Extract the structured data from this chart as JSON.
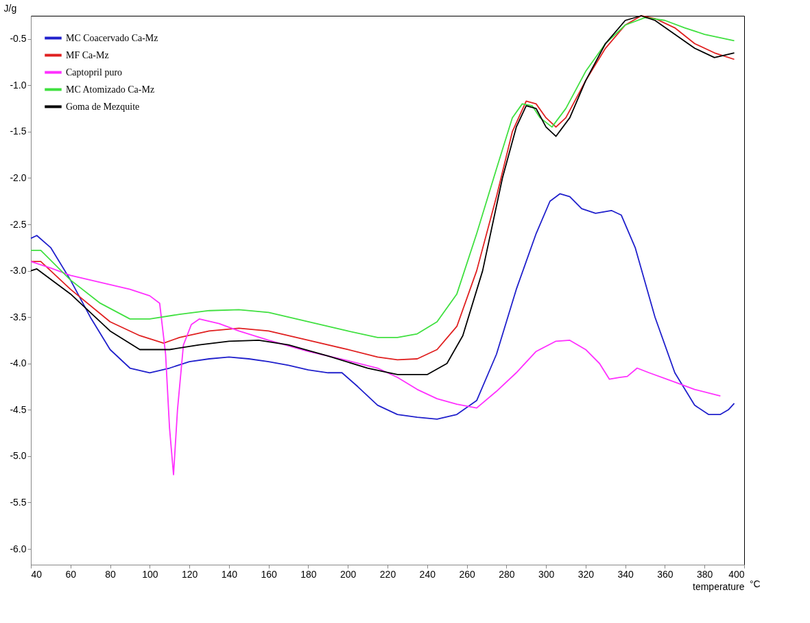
{
  "chart_data": {
    "type": "line",
    "xlabel": "temperature",
    "ylabel": "J/g",
    "annotations": [
      "°C"
    ],
    "xlim": [
      40,
      400
    ],
    "ylim": [
      -6.17,
      -0.25
    ],
    "xticks": [
      40,
      60,
      80,
      100,
      120,
      140,
      160,
      180,
      200,
      220,
      240,
      260,
      280,
      300,
      320,
      340,
      360,
      380,
      400
    ],
    "yticks": [
      {
        "value": -6.0,
        "label": "-6.0"
      },
      {
        "value": -5.5,
        "label": "-5.5"
      },
      {
        "value": -5.0,
        "label": "-5.0"
      },
      {
        "value": -4.5,
        "label": "-4.5"
      },
      {
        "value": -4.0,
        "label": "-4.0"
      },
      {
        "value": -3.5,
        "label": "-3.5"
      },
      {
        "value": -3.0,
        "label": "-3.0"
      },
      {
        "value": -2.5,
        "label": "-2.5"
      },
      {
        "value": -2.0,
        "label": "-2.0"
      },
      {
        "value": -1.5,
        "label": "-1.5"
      },
      {
        "value": -1.0,
        "label": "-1.0"
      },
      {
        "value": -0.5,
        "label": "-0.5"
      }
    ],
    "grid": false,
    "legend": "top left",
    "marker": "none",
    "line_style": "solid",
    "series": [
      {
        "name": "MC Coacervado Ca-Mz",
        "color": "#2020cc",
        "x": [
          40,
          43,
          50,
          60,
          70,
          80,
          90,
          100,
          110,
          120,
          130,
          140,
          150,
          160,
          170,
          180,
          190,
          197,
          205,
          215,
          225,
          235,
          245,
          255,
          265,
          275,
          285,
          295,
          302,
          307,
          312,
          318,
          325,
          333,
          338,
          345,
          355,
          365,
          375,
          382,
          388,
          392,
          395
        ],
        "values": [
          -2.65,
          -2.62,
          -2.75,
          -3.1,
          -3.5,
          -3.85,
          -4.05,
          -4.1,
          -4.05,
          -3.98,
          -3.95,
          -3.93,
          -3.95,
          -3.98,
          -4.02,
          -4.07,
          -4.1,
          -4.1,
          -4.25,
          -4.45,
          -4.55,
          -4.58,
          -4.6,
          -4.55,
          -4.4,
          -3.9,
          -3.2,
          -2.6,
          -2.25,
          -2.17,
          -2.2,
          -2.33,
          -2.38,
          -2.35,
          -2.4,
          -2.75,
          -3.5,
          -4.1,
          -4.45,
          -4.55,
          -4.55,
          -4.5,
          -4.43
        ]
      },
      {
        "name": "MF Ca-Mz",
        "color": "#e02020",
        "x": [
          40,
          45,
          60,
          80,
          95,
          107,
          115,
          130,
          145,
          160,
          180,
          200,
          215,
          225,
          235,
          245,
          255,
          265,
          275,
          283,
          290,
          295,
          300,
          305,
          310,
          320,
          330,
          340,
          348,
          355,
          365,
          375,
          385,
          395
        ],
        "values": [
          -2.9,
          -2.9,
          -3.2,
          -3.55,
          -3.7,
          -3.78,
          -3.72,
          -3.65,
          -3.62,
          -3.65,
          -3.75,
          -3.85,
          -3.93,
          -3.96,
          -3.95,
          -3.85,
          -3.6,
          -3.0,
          -2.2,
          -1.5,
          -1.17,
          -1.2,
          -1.35,
          -1.45,
          -1.35,
          -0.95,
          -0.6,
          -0.35,
          -0.25,
          -0.28,
          -0.38,
          -0.55,
          -0.65,
          -0.72
        ]
      },
      {
        "name": "Captopril puro",
        "color": "#ff30ff",
        "x": [
          40,
          50,
          60,
          70,
          80,
          90,
          100,
          105,
          108,
          110,
          112,
          114,
          117,
          121,
          125,
          135,
          145,
          160,
          180,
          200,
          215,
          225,
          235,
          245,
          255,
          265,
          275,
          285,
          295,
          305,
          312,
          320,
          327,
          332,
          337,
          341,
          346,
          352,
          365,
          375,
          388
        ],
        "values": [
          -2.9,
          -2.97,
          -3.05,
          -3.1,
          -3.15,
          -3.2,
          -3.27,
          -3.35,
          -3.9,
          -4.7,
          -5.2,
          -4.5,
          -3.8,
          -3.58,
          -3.52,
          -3.57,
          -3.65,
          -3.75,
          -3.87,
          -3.97,
          -4.05,
          -4.15,
          -4.28,
          -4.38,
          -4.44,
          -4.48,
          -4.3,
          -4.1,
          -3.87,
          -3.76,
          -3.75,
          -3.85,
          -4.0,
          -4.17,
          -4.15,
          -4.14,
          -4.05,
          -4.1,
          -4.2,
          -4.28,
          -4.35
        ]
      },
      {
        "name": "MC Atomizado Ca-Mz",
        "color": "#40e040",
        "x": [
          40,
          45,
          60,
          75,
          90,
          100,
          115,
          130,
          145,
          160,
          180,
          200,
          215,
          225,
          235,
          245,
          255,
          265,
          275,
          283,
          288,
          293,
          297,
          303,
          310,
          320,
          330,
          340,
          350,
          360,
          370,
          380,
          395
        ],
        "values": [
          -2.78,
          -2.78,
          -3.1,
          -3.35,
          -3.52,
          -3.52,
          -3.47,
          -3.43,
          -3.42,
          -3.45,
          -3.55,
          -3.65,
          -3.72,
          -3.72,
          -3.68,
          -3.55,
          -3.25,
          -2.6,
          -1.9,
          -1.35,
          -1.2,
          -1.22,
          -1.35,
          -1.45,
          -1.25,
          -0.85,
          -0.55,
          -0.35,
          -0.27,
          -0.3,
          -0.38,
          -0.45,
          -0.52
        ]
      },
      {
        "name": "Goma de Mezquite",
        "color": "#000000",
        "x": [
          40,
          43,
          60,
          80,
          95,
          110,
          125,
          140,
          155,
          170,
          190,
          210,
          225,
          240,
          250,
          258,
          268,
          278,
          285,
          290,
          295,
          300,
          305,
          312,
          320,
          330,
          340,
          348,
          355,
          365,
          375,
          385,
          395
        ],
        "values": [
          -3.0,
          -2.98,
          -3.25,
          -3.65,
          -3.85,
          -3.85,
          -3.8,
          -3.76,
          -3.75,
          -3.8,
          -3.92,
          -4.05,
          -4.12,
          -4.12,
          -4.0,
          -3.7,
          -3.0,
          -2.0,
          -1.45,
          -1.22,
          -1.25,
          -1.45,
          -1.55,
          -1.35,
          -0.95,
          -0.55,
          -0.3,
          -0.25,
          -0.3,
          -0.45,
          -0.6,
          -0.7,
          -0.65
        ]
      }
    ]
  }
}
